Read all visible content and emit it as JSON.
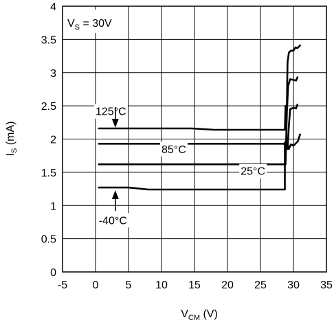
{
  "chart_data": {
    "type": "line",
    "xlabel": {
      "main": "V",
      "sub": "CM",
      "rest": " (V)"
    },
    "ylabel": {
      "main": "I",
      "sub": "S",
      "rest": " (mA)"
    },
    "xlim": [
      -5,
      35
    ],
    "ylim": [
      0,
      4
    ],
    "xticks": [
      -5,
      0,
      5,
      10,
      15,
      20,
      25,
      30,
      35
    ],
    "yticks": [
      0,
      0.5,
      1,
      1.5,
      2,
      2.5,
      3,
      3.5,
      4
    ],
    "grid": true,
    "annotation": {
      "main": "V",
      "sub": "S",
      "rest": " = 30V"
    },
    "series": [
      {
        "name": "125°C",
        "points": [
          [
            0.5,
            2.16
          ],
          [
            14.5,
            2.16
          ],
          [
            18,
            2.14
          ],
          [
            28.7,
            2.14
          ],
          [
            28.8,
            2.5
          ],
          [
            29,
            2.5
          ],
          [
            29.1,
            3.15
          ],
          [
            29.3,
            3.3
          ],
          [
            29.6,
            3.33
          ],
          [
            30,
            3.33
          ],
          [
            30.3,
            3.38
          ],
          [
            30.6,
            3.37
          ],
          [
            31,
            3.41
          ]
        ],
        "label": "125°C",
        "label_pos": [
          0,
          2.36
        ]
      },
      {
        "name": "85°C",
        "points": [
          [
            0.5,
            1.93
          ],
          [
            28.5,
            1.93
          ],
          [
            28.9,
            1.9
          ],
          [
            29.1,
            1.85
          ],
          [
            29.3,
            2.2
          ],
          [
            29.5,
            2.45
          ],
          [
            30,
            2.47
          ],
          [
            30.4,
            2.46
          ],
          [
            30.6,
            2.52
          ]
        ],
        "label": "85°C",
        "label_pos": [
          10,
          1.79
        ]
      },
      {
        "name": "25°C",
        "points": [
          [
            0.5,
            1.62
          ],
          [
            28.8,
            1.62
          ],
          [
            29,
            2.4
          ],
          [
            29.2,
            2.8
          ],
          [
            29.5,
            2.9
          ],
          [
            30,
            2.89
          ],
          [
            30.4,
            2.88
          ],
          [
            30.6,
            2.93
          ]
        ],
        "label": "25°C",
        "label_pos": [
          22,
          1.46
        ]
      },
      {
        "name": "-40°C",
        "points": [
          [
            0.5,
            1.27
          ],
          [
            5,
            1.27
          ],
          [
            8,
            1.24
          ],
          [
            28.7,
            1.24
          ],
          [
            28.7,
            1.95
          ],
          [
            29,
            1.95
          ],
          [
            29.3,
            1.85
          ],
          [
            29.6,
            1.92
          ],
          [
            30,
            1.9
          ],
          [
            30.7,
            1.97
          ],
          [
            31,
            2.07
          ]
        ],
        "label": "-40°C",
        "label_pos": [
          0.5,
          0.72
        ]
      }
    ],
    "arrows": [
      {
        "name": "arrow-125",
        "from": [
          3,
          2.48
        ],
        "to": [
          3,
          2.17
        ]
      },
      {
        "name": "arrow-neg40",
        "from": [
          3,
          0.92
        ],
        "to": [
          3,
          1.23
        ]
      }
    ]
  }
}
